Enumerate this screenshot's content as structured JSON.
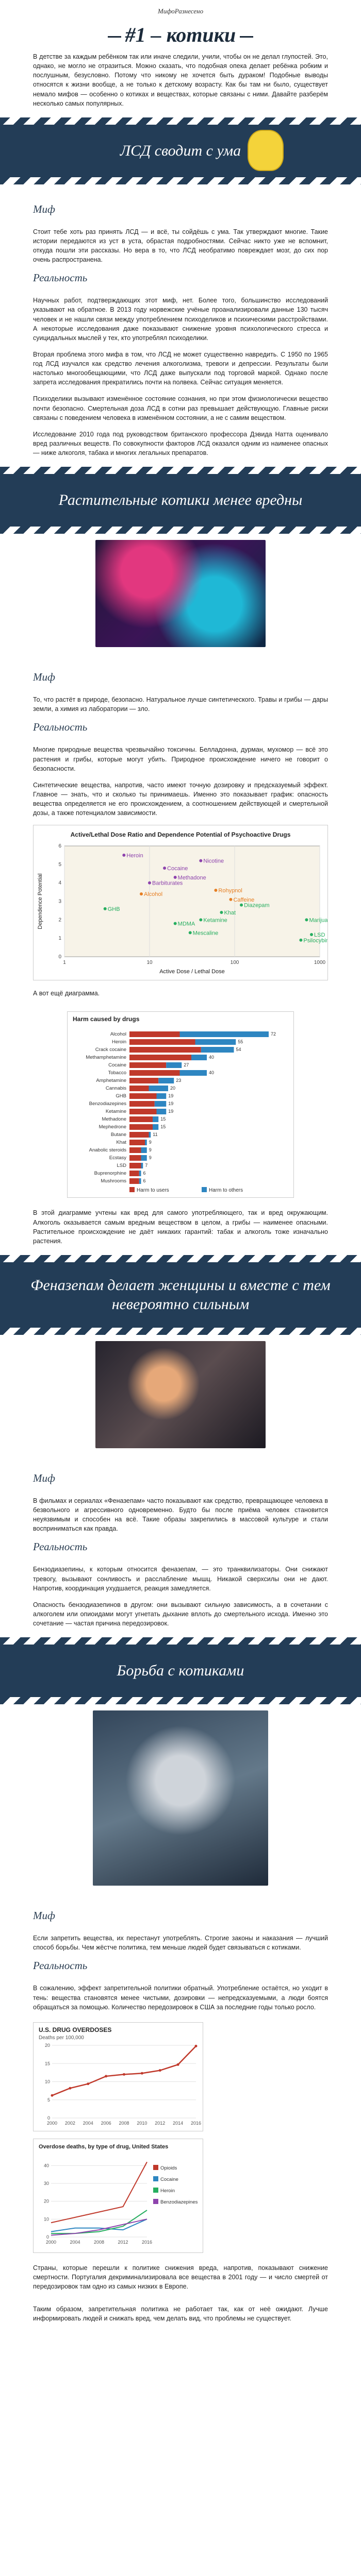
{
  "brand": "МифоРазнесено",
  "title": "#1 – котики",
  "intro": "В детстве за каждым ребёнком так или иначе следили, учили, чтобы он не делал глупостей. Это, однако, не могло не отразиться. Можно сказать, что подобная опека делает ребёнка робким и послушным, безусловно. Потому что никому не хочется быть дураком! Подобные выводы относятся к жизни вообще, а не только к детскому возрасту. Как бы там ни было, существует немало мифов — особенно о котиках и веществах, которые связаны с ними. Давайте разберём несколько самых популярных.",
  "band1": {
    "title": "ЛСД сводит с ума"
  },
  "sec1": {
    "myth_label": "Миф",
    "myth": "Стоит тебе хоть раз принять ЛСД — и всё, ты сойдёшь с ума. Так утверждают многие. Такие истории передаются из уст в уста, обрастая подробностями. Сейчас никто уже не вспомнит, откуда пошли эти рассказы. Но вера в то, что ЛСД необратимо повреждает мозг, до сих пор очень распространена.",
    "real_label": "Реальность",
    "real1": "Научных работ, подтверждающих этот миф, нет. Более того, большинство исследований указывают на обратное. В 2013 году норвежские учёные проанализировали данные 130 тысяч человек и не нашли связи между употреблением психоделиков и психическими расстройствами. А некоторые исследования даже показывают снижение уровня психологического стресса и суицидальных мыслей у тех, кто употреблял психоделики.",
    "real2": "Вторая проблема этого мифа в том, что ЛСД не может существенно навредить. С 1950 по 1965 год ЛСД изучался как средство лечения алкоголизма, тревоги и депрессии. Результаты были настолько многообещающими, что ЛСД даже выпускали под торговой маркой. Однако после запрета исследования прекратились почти на полвека. Сейчас ситуация меняется.",
    "real3": "Психоделики вызывают изменённое состояние сознания, но при этом физиологически вещество почти безопасно. Смертельная доза ЛСД в сотни раз превышает действующую. Главные риски связаны с поведением человека в изменённом состоянии, а не с самим веществом.",
    "real4": "Исследование 2010 года под руководством британского профессора Дэвида Натта оценивало вред различных веществ. По совокупности факторов ЛСД оказался одним из наименее опасных — ниже алкоголя, табака и многих легальных препаратов."
  },
  "band2": {
    "title": "Растительные котики менее вредны"
  },
  "sec2": {
    "myth_label": "Миф",
    "myth": "То, что растёт в природе, безопасно. Натуральное лучше синтетического. Травы и грибы — дары земли, а химия из лаборатории — зло.",
    "real_label": "Реальность",
    "real1": "Многие природные вещества чрезвычайно токсичны. Белладонна, дурман, мухомор — всё это растения и грибы, которые могут убить. Природное происхождение ничего не говорит о безопасности.",
    "real2": "Синтетические вещества, напротив, часто имеют точную дозировку и предсказуемый эффект. Главное — знать, что и сколько ты принимаешь. Именно это показывает график: опасность вещества определяется не его происхождением, а соотношением действующей и смертельной дозы, а также потенциалом зависимости."
  },
  "chart1": {
    "title": "Active/Lethal Dose Ratio and Dependence Potential of Psychoactive Drugs",
    "ylabel": "Dependence Potential",
    "xlabel": "Active Dose / Lethal Dose",
    "xlim": [
      1,
      1000
    ],
    "ylim": [
      0,
      6
    ],
    "points": [
      {
        "label": "Heroin",
        "x": 5,
        "y": 5.5,
        "color": "#8e44ad"
      },
      {
        "label": "Cocaine",
        "x": 15,
        "y": 4.8,
        "color": "#8e44ad"
      },
      {
        "label": "Nicotine",
        "x": 40,
        "y": 5.2,
        "color": "#8e44ad"
      },
      {
        "label": "Methadone",
        "x": 20,
        "y": 4.3,
        "color": "#8e44ad"
      },
      {
        "label": "Barbiturates",
        "x": 10,
        "y": 4.0,
        "color": "#8e44ad"
      },
      {
        "label": "Alcohol",
        "x": 8,
        "y": 3.4,
        "color": "#e67e22"
      },
      {
        "label": "Rohypnol",
        "x": 60,
        "y": 3.6,
        "color": "#e67e22"
      },
      {
        "label": "Caffeine",
        "x": 90,
        "y": 3.1,
        "color": "#e67e22"
      },
      {
        "label": "Diazepam",
        "x": 120,
        "y": 2.8,
        "color": "#27ae60"
      },
      {
        "label": "GHB",
        "x": 3,
        "y": 2.6,
        "color": "#27ae60"
      },
      {
        "label": "Khat",
        "x": 70,
        "y": 2.4,
        "color": "#27ae60"
      },
      {
        "label": "Ketamine",
        "x": 40,
        "y": 2.0,
        "color": "#27ae60"
      },
      {
        "label": "MDMA",
        "x": 20,
        "y": 1.8,
        "color": "#27ae60"
      },
      {
        "label": "Mescaline",
        "x": 30,
        "y": 1.3,
        "color": "#27ae60"
      },
      {
        "label": "Marijuana",
        "x": 700,
        "y": 2.0,
        "color": "#27ae60"
      },
      {
        "label": "LSD",
        "x": 800,
        "y": 1.2,
        "color": "#27ae60"
      },
      {
        "label": "Psilocybin",
        "x": 600,
        "y": 0.9,
        "color": "#27ae60"
      }
    ]
  },
  "caption_chart2": "А вот ещё диаграмма.",
  "chart2": {
    "title": "Harm caused by drugs",
    "categories": [
      "Alcohol",
      "Heroin",
      "Crack cocaine",
      "Methamphetamine",
      "Cocaine",
      "Tobacco",
      "Amphetamine",
      "Cannabis",
      "GHB",
      "Benzodiazepines",
      "Ketamine",
      "Methadone",
      "Mephedrone",
      "Butane",
      "Khat",
      "Anabolic steroids",
      "Ecstasy",
      "LSD",
      "Buprenorphine",
      "Mushrooms"
    ],
    "series": [
      {
        "name": "Harm to users",
        "color": "#c0392b",
        "values": [
          26,
          34,
          37,
          32,
          19,
          26,
          15,
          10,
          14,
          13,
          14,
          12,
          12,
          10,
          8,
          6,
          6,
          6,
          5,
          5
        ]
      },
      {
        "name": "Harm to others",
        "color": "#2e86c1",
        "values": [
          46,
          21,
          17,
          8,
          8,
          14,
          8,
          10,
          5,
          6,
          5,
          3,
          3,
          1,
          1,
          3,
          3,
          1,
          1,
          1
        ]
      }
    ]
  },
  "sec2b": {
    "para": "В этой диаграмме учтены как вред для самого употребляющего, так и вред окружающим. Алкоголь оказывается самым вредным веществом в целом, а грибы — наименее опасными. Растительное происхождение не даёт никаких гарантий: табак и алкоголь тоже изначально растения."
  },
  "band3": {
    "title": "Феназепам делает женщины и вместе с тем невероятно сильным"
  },
  "sec3": {
    "myth_label": "Миф",
    "myth": "В фильмах и сериалах «Феназепам» часто показывают как средство, превращающее человека в безвольного и агрессивного одновременно. Будто бы после приёма человек становится неуязвимым и способен на всё. Такие образы закрепились в массовой культуре и стали восприниматься как правда.",
    "real_label": "Реальность",
    "real1": "Бензодиазепины, к которым относится феназепам, — это транквилизаторы. Они снижают тревогу, вызывают сонливость и расслабление мышц. Никакой сверхсилы они не дают. Напротив, координация ухудшается, реакция замедляется.",
    "real2": "Опасность бензодиазепинов в другом: они вызывают сильную зависимость, а в сочетании с алкоголем или опиоидами могут угнетать дыхание вплоть до смертельного исхода. Именно это сочетание — частая причина передозировок."
  },
  "band4": {
    "title": "Борьба с котиками"
  },
  "sec4": {
    "myth_label": "Миф",
    "myth": "Если запретить вещества, их перестанут употреблять. Строгие законы и наказания — лучший способ борьбы. Чем жёстче политика, тем меньше людей будет связываться с котиками.",
    "real_label": "Реальность",
    "real1": "В сожалению, эффект запретительной политики обратный. Употребление остаётся, но уходит в тень: вещества становятся менее чистыми, дозировки — непредсказуемыми, а люди боятся обращаться за помощью. Количество передозировок в США за последние годы только росло.",
    "real2": "Страны, которые перешли к политике снижения вреда, напротив, показывают снижение смертности. Португалия декриминализировала все вещества в 2001 году — и число смертей от передозировок там одно из самых низких в Европе."
  },
  "chart3": {
    "title": "U.S. DRUG OVERDOSES",
    "subtitle": "Deaths per 100,000",
    "x": [
      2000,
      2002,
      2004,
      2006,
      2008,
      2010,
      2012,
      2014,
      2016
    ],
    "values": [
      6.2,
      8.2,
      9.4,
      11.5,
      12.0,
      12.3,
      13.1,
      14.7,
      19.8
    ],
    "color": "#c0392b"
  },
  "chart4": {
    "title": "Overdose deaths, by type of drug, United States",
    "x": [
      2000,
      2004,
      2008,
      2012,
      2016
    ],
    "series": [
      {
        "name": "Opioids",
        "color": "#c0392b",
        "values": [
          8,
          11,
          14,
          17,
          42
        ]
      },
      {
        "name": "Cocaine",
        "color": "#2e86c1",
        "values": [
          3,
          5,
          5,
          4,
          10
        ]
      },
      {
        "name": "Heroin",
        "color": "#27ae60",
        "values": [
          2,
          2,
          3,
          6,
          15
        ]
      },
      {
        "name": "Benzodiazepines",
        "color": "#8e44ad",
        "values": [
          1,
          2,
          4,
          7,
          10
        ]
      }
    ]
  },
  "footer": "Таким образом, запретительная политика не работает так, как от неё ожидают. Лучше информировать людей и снижать вред, чем делать вид, что проблемы не существует."
}
